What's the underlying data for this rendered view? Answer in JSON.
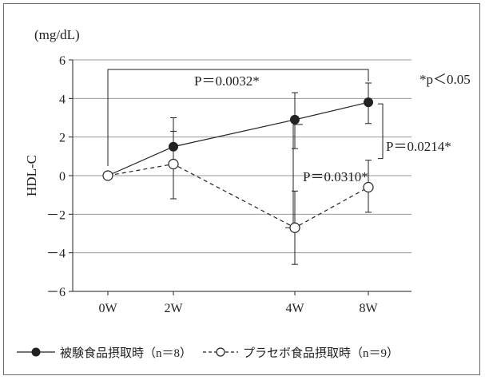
{
  "chart_data": {
    "type": "line",
    "unit": "(mg/dL)",
    "ylabel": "HDL-C",
    "categories": [
      "0W",
      "2W",
      "4W",
      "8W"
    ],
    "ylim": [
      -6,
      6
    ],
    "yticks": [
      6,
      4,
      2,
      0,
      -2,
      -4,
      -6
    ],
    "ytick_labels": [
      "6",
      "4",
      "2",
      "0",
      "－2",
      "－4",
      "－6"
    ],
    "grid": "horizontal",
    "series": [
      {
        "name": "被験食品摂取時（n＝8）",
        "style": "solid-filled",
        "values": [
          0,
          1.5,
          2.9,
          3.8
        ],
        "err_low": [
          null,
          0.8,
          1.4,
          2.7
        ],
        "err_high": [
          null,
          3.0,
          4.3,
          4.8
        ]
      },
      {
        "name": "プラセボ食品摂取時（n＝9）",
        "style": "dashed-open",
        "values": [
          0,
          0.6,
          -2.7,
          -0.6
        ],
        "err_low": [
          null,
          -1.2,
          -4.6,
          -1.9
        ],
        "err_high": [
          null,
          2.3,
          -0.8,
          0.8
        ]
      }
    ],
    "annotations": {
      "significance_note": "*p＜0.05",
      "p_8w_vs_0w": "P＝0.0032*",
      "p_8w_between": "P＝0.0214*",
      "p_4w_between": "P＝0.0310*"
    },
    "legend_position": "bottom",
    "colors": {
      "line": "#222222",
      "grid": "#9a9a9a",
      "frame": "#6b6b6b"
    }
  }
}
